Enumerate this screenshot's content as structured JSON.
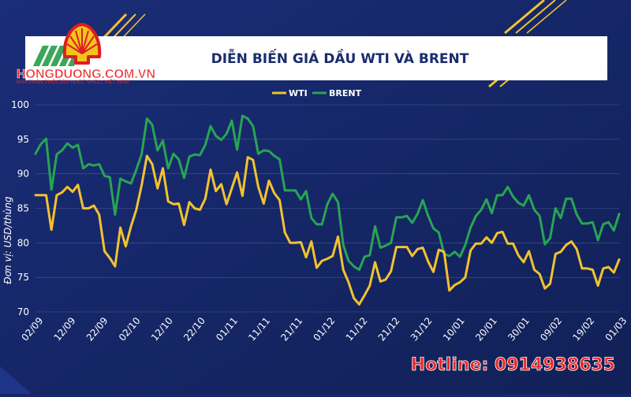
{
  "brand": {
    "name": "HONGDUONG.COM.VN",
    "tagline": "NHÀ PHÂN PHỐI DẦU NHỚT SHELL VIỆT NAM",
    "logo": "shell-pecten-icon"
  },
  "hotline": "Hotline: 0914938635",
  "colors": {
    "background": "#15276a",
    "wti": "#f2c230",
    "brent": "#27a553",
    "title_bar": "#ffffff",
    "title_text": "#1b2c6e",
    "hotline": "#e8262a"
  },
  "chart_data": {
    "type": "line",
    "title": "DIỄN BIẾN GIÁ DẦU WTI VÀ BRENT",
    "xlabel": "",
    "ylabel": "Đơn vị: USD/thùng",
    "ylim": [
      70,
      100
    ],
    "yticks": [
      70,
      75,
      80,
      85,
      90,
      95,
      100
    ],
    "xticks": [
      "02/09",
      "12/09",
      "22/09",
      "02/10",
      "12/10",
      "22/10",
      "01/11",
      "11/11",
      "21/11",
      "01/12",
      "11/12",
      "21/12",
      "31/12",
      "10/01",
      "20/01",
      "30/01",
      "09/02",
      "19/02",
      "01/03"
    ],
    "grid": true,
    "legend": "top-center",
    "series": [
      {
        "name": "WTI",
        "color": "#f2c230",
        "values": [
          86.9,
          86.9,
          86.9,
          81.9,
          86.9,
          87.3,
          88.1,
          87.4,
          88.4,
          85.0,
          85.0,
          85.4,
          84.1,
          78.8,
          77.8,
          76.6,
          82.2,
          79.5,
          82.4,
          84.8,
          88.3,
          92.6,
          91.4,
          87.9,
          90.8,
          86.0,
          85.6,
          85.7,
          82.6,
          85.9,
          85.0,
          84.8,
          86.4,
          90.6,
          87.5,
          88.5,
          85.6,
          87.9,
          90.2,
          86.8,
          92.4,
          92.0,
          88.1,
          85.7,
          89.0,
          87.2,
          86.2,
          81.5,
          80.0,
          80.0,
          80.1,
          77.9,
          80.2,
          76.4,
          77.4,
          77.7,
          78.1,
          80.9,
          76.1,
          74.3,
          72.0,
          71.1,
          72.4,
          73.8,
          77.2,
          74.4,
          74.7,
          75.9,
          79.4,
          79.4,
          79.4,
          78.1,
          79.1,
          79.3,
          77.3,
          75.8,
          79.0,
          78.7,
          73.1,
          73.9,
          74.3,
          75.0,
          78.9,
          79.9,
          79.9,
          80.8,
          80.0,
          81.4,
          81.6,
          79.9,
          79.9,
          78.2,
          77.2,
          78.8,
          76.1,
          75.5,
          73.4,
          74.1,
          78.4,
          78.7,
          79.7,
          80.2,
          79.1,
          76.3,
          76.3,
          76.1,
          73.8,
          76.3,
          76.5,
          75.7,
          77.6
        ]
      },
      {
        "name": "BRENT",
        "color": "#27a553",
        "values": [
          92.9,
          94.3,
          95.1,
          87.7,
          92.8,
          93.4,
          94.4,
          93.8,
          94.2,
          90.8,
          91.4,
          91.2,
          91.4,
          89.7,
          89.5,
          84.1,
          89.3,
          88.9,
          88.6,
          90.6,
          92.8,
          98.0,
          97.1,
          93.4,
          94.8,
          90.8,
          92.9,
          92.1,
          89.4,
          92.5,
          92.8,
          92.7,
          94.2,
          96.9,
          95.5,
          94.9,
          95.8,
          97.7,
          93.5,
          98.4,
          98.0,
          96.9,
          92.9,
          93.4,
          93.3,
          92.6,
          92.1,
          87.6,
          87.6,
          87.6,
          86.3,
          87.5,
          83.6,
          82.7,
          82.7,
          85.6,
          87.1,
          85.9,
          79.7,
          77.4,
          76.6,
          76.1,
          78.0,
          78.2,
          82.4,
          79.3,
          79.6,
          80.0,
          83.7,
          83.7,
          83.9,
          82.9,
          84.2,
          86.2,
          83.9,
          82.1,
          81.5,
          78.4,
          78.1,
          78.7,
          78.0,
          79.7,
          82.2,
          83.9,
          84.8,
          86.3,
          84.3,
          86.9,
          86.9,
          88.1,
          86.7,
          85.8,
          85.4,
          86.9,
          84.8,
          83.9,
          79.8,
          80.7,
          85.0,
          83.6,
          86.4,
          86.4,
          84.1,
          82.8,
          82.8,
          83.0,
          80.4,
          82.7,
          83.0,
          81.8,
          84.2
        ]
      }
    ]
  }
}
